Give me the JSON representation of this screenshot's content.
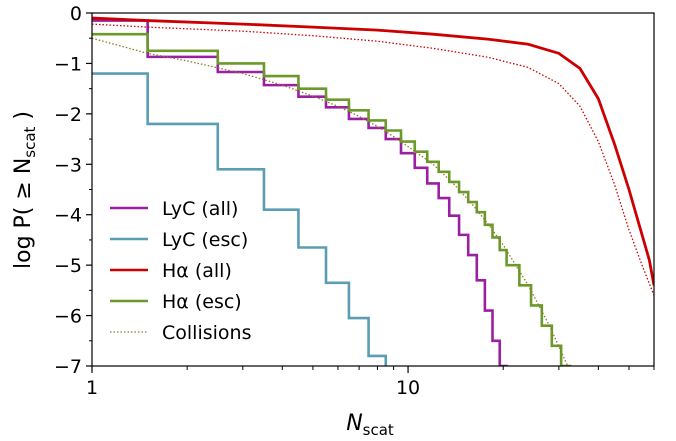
{
  "chart_data": {
    "type": "line",
    "xlabel_main": "N",
    "xlabel_sub": "scat",
    "ylabel_prefix": "log P( ≥ N",
    "ylabel_sub": "scat",
    "ylabel_suffix": " )",
    "x_scale": "log",
    "xlim": [
      1,
      60
    ],
    "ylim": [
      -7,
      0
    ],
    "x_ticks": [
      {
        "value": 1,
        "label": "1"
      },
      {
        "value": 10,
        "label": "10"
      }
    ],
    "y_ticks": [
      {
        "value": 0,
        "label": "0"
      },
      {
        "value": -1,
        "label": "−1"
      },
      {
        "value": -2,
        "label": "−2"
      },
      {
        "value": -3,
        "label": "−3"
      },
      {
        "value": -4,
        "label": "−4"
      },
      {
        "value": -5,
        "label": "−5"
      },
      {
        "value": -6,
        "label": "−6"
      },
      {
        "value": -7,
        "label": "−7"
      }
    ],
    "grid": false,
    "legend_position": "lower-left",
    "series": [
      {
        "name": "LyC (all)",
        "color": "#9b1fa3",
        "style": "step",
        "x": [
          1,
          2,
          3,
          4,
          5,
          6,
          7,
          8,
          9,
          10,
          11,
          12,
          13,
          14,
          15,
          16,
          17,
          18,
          19,
          20
        ],
        "y": [
          -0.15,
          -0.87,
          -1.17,
          -1.43,
          -1.66,
          -1.87,
          -2.1,
          -2.28,
          -2.5,
          -2.78,
          -3.07,
          -3.38,
          -3.67,
          -4.02,
          -4.4,
          -4.8,
          -5.3,
          -5.9,
          -6.5,
          -7.0
        ]
      },
      {
        "name": "LyC (esc)",
        "color": "#5b9db3",
        "style": "step",
        "x": [
          1,
          2,
          3,
          4,
          5,
          6,
          7,
          8
        ],
        "y": [
          -1.2,
          -2.2,
          -3.1,
          -3.9,
          -4.65,
          -5.35,
          -6.05,
          -6.8
        ]
      },
      {
        "name": "Hα (all)",
        "color": "#cc0000",
        "style": "line",
        "x": [
          1,
          1.5,
          3,
          5,
          8,
          12,
          18,
          24,
          30,
          35,
          40,
          45,
          50,
          55,
          58,
          60
        ],
        "y": [
          -0.1,
          -0.15,
          -0.22,
          -0.28,
          -0.34,
          -0.42,
          -0.52,
          -0.62,
          -0.8,
          -1.1,
          -1.7,
          -2.6,
          -3.5,
          -4.4,
          -4.9,
          -5.4
        ]
      },
      {
        "name": "Hα (esc)",
        "color": "#6b9a2a",
        "style": "step",
        "x": [
          1,
          2,
          3,
          4,
          5,
          6,
          7,
          8,
          9,
          10,
          11,
          12,
          13,
          14,
          15,
          16,
          17,
          18,
          19,
          20,
          22,
          24,
          26,
          28,
          30,
          32
        ],
        "y": [
          -0.42,
          -0.75,
          -1.0,
          -1.25,
          -1.5,
          -1.72,
          -1.93,
          -2.13,
          -2.33,
          -2.55,
          -2.75,
          -2.95,
          -3.15,
          -3.35,
          -3.55,
          -3.75,
          -3.95,
          -4.2,
          -4.45,
          -4.7,
          -5.0,
          -5.4,
          -5.8,
          -6.2,
          -6.6,
          -7.0
        ]
      },
      {
        "name": "Collisions",
        "color": "#8a7a2a",
        "style": "dotted",
        "x": [
          1,
          1.5,
          2,
          3,
          4,
          5,
          6,
          7,
          8,
          9,
          10,
          12,
          14,
          16,
          18,
          20,
          24,
          28,
          32
        ],
        "y": [
          -0.5,
          -0.8,
          -0.95,
          -1.2,
          -1.43,
          -1.65,
          -1.85,
          -2.05,
          -2.25,
          -2.45,
          -2.65,
          -3.0,
          -3.4,
          -3.8,
          -4.2,
          -4.6,
          -5.4,
          -6.2,
          -7.0
        ],
        "y_all": {
          "color": "#cc0000",
          "x": [
            1,
            1.5,
            3,
            5,
            8,
            12,
            18,
            24,
            30,
            35,
            40,
            45,
            50,
            55,
            60
          ],
          "y": [
            -0.22,
            -0.28,
            -0.36,
            -0.45,
            -0.56,
            -0.7,
            -0.88,
            -1.08,
            -1.4,
            -1.85,
            -2.55,
            -3.4,
            -4.3,
            -5.0,
            -5.6
          ]
        }
      }
    ]
  }
}
